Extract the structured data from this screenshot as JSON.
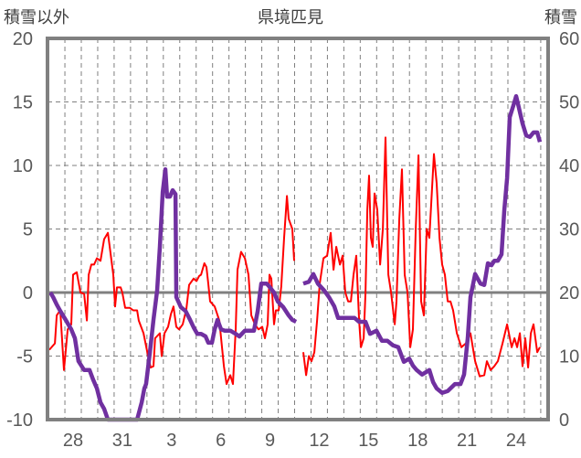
{
  "chart_data": {
    "type": "line",
    "title": "県境匹見",
    "ylabel_left": "積雪以外",
    "ylabel_right": "積雪",
    "ylim_left": [
      -10,
      20
    ],
    "ylim_right": [
      0,
      60
    ],
    "yticks_left": [
      "-10",
      "-5",
      "0",
      "5",
      "10",
      "15",
      "20"
    ],
    "yticks_right": [
      "0",
      "10",
      "20",
      "30",
      "40",
      "50",
      "60"
    ],
    "x_unit": "days since the 28th",
    "xlim": [
      -1.56,
      28.95
    ],
    "xticks": [
      {
        "t": 0,
        "label": "28"
      },
      {
        "t": 3,
        "label": "31"
      },
      {
        "t": 6,
        "label": "3"
      },
      {
        "t": 9,
        "label": "6"
      },
      {
        "t": 12,
        "label": "9"
      },
      {
        "t": 15,
        "label": "12"
      },
      {
        "t": 18,
        "label": "15"
      },
      {
        "t": 21,
        "label": "18"
      },
      {
        "t": 24,
        "label": "21"
      },
      {
        "t": 27,
        "label": "24"
      }
    ],
    "grid": true,
    "series": [
      {
        "name": "積雪以外",
        "axis": "left",
        "color": "#ff0000",
        "points": [
          [
            -1.45,
            -4.5
          ],
          [
            -1.11,
            -4.0
          ],
          [
            -1.0,
            -1.8
          ],
          [
            -0.78,
            -1.4
          ],
          [
            -0.56,
            -6.1
          ],
          [
            -0.33,
            -2.9
          ],
          [
            -0.11,
            -2.5
          ],
          [
            0,
            1.4
          ],
          [
            0.22,
            1.6
          ],
          [
            0.45,
            0
          ],
          [
            0.67,
            -0.1
          ],
          [
            0.84,
            -2.2
          ],
          [
            0.95,
            1.4
          ],
          [
            1.11,
            2.2
          ],
          [
            1.28,
            2.2
          ],
          [
            1.45,
            2.7
          ],
          [
            1.67,
            2.5
          ],
          [
            1.89,
            4.2
          ],
          [
            2.12,
            4.7
          ],
          [
            2.23,
            3.6
          ],
          [
            2.45,
            1.4
          ],
          [
            2.56,
            -1.1
          ],
          [
            2.67,
            0.4
          ],
          [
            2.9,
            0.4
          ],
          [
            3.0,
            0
          ],
          [
            3.17,
            -1.2
          ],
          [
            3.45,
            -1.2
          ],
          [
            3.67,
            -1.4
          ],
          [
            3.9,
            -1.4
          ],
          [
            4.0,
            -2.2
          ],
          [
            4.29,
            -3.2
          ],
          [
            4.57,
            -5.0
          ],
          [
            4.73,
            -5.9
          ],
          [
            4.9,
            -5.8
          ],
          [
            5.0,
            -3.6
          ],
          [
            5.29,
            -3.2
          ],
          [
            5.4,
            -5.0
          ],
          [
            5.57,
            -3.2
          ],
          [
            5.79,
            -2.7
          ],
          [
            5.96,
            -1.7
          ],
          [
            6.12,
            -1.1
          ],
          [
            6.29,
            -2.7
          ],
          [
            6.46,
            -2.9
          ],
          [
            6.68,
            -2.5
          ],
          [
            6.9,
            -1.3
          ],
          [
            7.07,
            0.6
          ],
          [
            7.35,
            1.1
          ],
          [
            7.52,
            0.9
          ],
          [
            7.68,
            1.3
          ],
          [
            7.8,
            1.4
          ],
          [
            8.0,
            2.3
          ],
          [
            8.13,
            2.0
          ],
          [
            8.24,
            0.7
          ],
          [
            8.35,
            -0.7
          ],
          [
            8.63,
            -1.1
          ],
          [
            8.91,
            -2.2
          ],
          [
            9.19,
            -5.8
          ],
          [
            9.35,
            -7.2
          ],
          [
            9.58,
            -6.5
          ],
          [
            9.74,
            -7.2
          ],
          [
            9.91,
            -2.9
          ],
          [
            10.02,
            1.8
          ],
          [
            10.24,
            3.2
          ],
          [
            10.47,
            2.7
          ],
          [
            10.69,
            1.4
          ],
          [
            10.86,
            -1.8
          ],
          [
            11.08,
            -2.5
          ],
          [
            11.3,
            -2.9
          ],
          [
            11.53,
            -2.7
          ],
          [
            11.69,
            -3.6
          ],
          [
            11.86,
            -2.5
          ],
          [
            11.97,
            1.4
          ],
          [
            12.08,
            1.1
          ],
          [
            12.25,
            -2.5
          ],
          [
            12.36,
            -1.4
          ],
          [
            12.53,
            -1.4
          ],
          [
            12.69,
            0.5
          ],
          [
            12.86,
            4.3
          ],
          [
            13.03,
            7.6
          ],
          [
            13.14,
            5.8
          ],
          [
            13.36,
            5.0
          ],
          [
            13.47,
            2.5
          ],
          null,
          [
            14.03,
            -4.7
          ],
          [
            14.2,
            -6.5
          ],
          [
            14.37,
            -5.0
          ],
          [
            14.53,
            -5.4
          ],
          [
            14.7,
            -4.7
          ],
          [
            14.87,
            -2.2
          ],
          [
            15.03,
            0.7
          ],
          [
            15.26,
            2.7
          ],
          [
            15.48,
            2.9
          ],
          [
            15.7,
            4.7
          ],
          [
            15.87,
            1.8
          ],
          [
            16.04,
            3.6
          ],
          [
            16.26,
            2.2
          ],
          [
            16.43,
            2.9
          ],
          [
            16.59,
            0
          ],
          [
            16.76,
            -0.7
          ],
          [
            16.93,
            -0.7
          ],
          [
            17.09,
            1.4
          ],
          [
            17.26,
            2.9
          ],
          [
            17.43,
            -2.2
          ],
          [
            17.54,
            -4.3
          ],
          [
            17.71,
            -3.6
          ],
          [
            17.82,
            0
          ],
          [
            17.93,
            6.5
          ],
          [
            18.04,
            9.2
          ],
          [
            18.15,
            4.3
          ],
          [
            18.26,
            3.6
          ],
          [
            18.37,
            7.8
          ],
          [
            18.54,
            6.5
          ],
          [
            18.71,
            2.2
          ],
          [
            18.88,
            5.0
          ],
          [
            19.04,
            12.2
          ],
          [
            19.21,
            1.4
          ],
          [
            19.38,
            0
          ],
          [
            19.6,
            -2.5
          ],
          [
            19.71,
            -0.7
          ],
          [
            19.88,
            5.8
          ],
          [
            20.04,
            9.7
          ],
          [
            20.21,
            1.4
          ],
          [
            20.38,
            0
          ],
          [
            20.55,
            -4.3
          ],
          [
            20.71,
            -2.9
          ],
          [
            20.88,
            5.0
          ],
          [
            21.05,
            10.8
          ],
          [
            21.21,
            -0.7
          ],
          [
            21.38,
            -1.8
          ],
          [
            21.55,
            5.0
          ],
          [
            21.71,
            4.3
          ],
          [
            21.99,
            10.9
          ],
          [
            22.16,
            8.6
          ],
          [
            22.33,
            4.3
          ],
          [
            22.49,
            2.2
          ],
          [
            22.66,
            1.4
          ],
          [
            22.83,
            -0.7
          ],
          [
            23.0,
            -0.7
          ],
          [
            23.16,
            -1.4
          ],
          [
            23.39,
            -3.2
          ],
          [
            23.66,
            -4.3
          ],
          [
            23.94,
            -4.0
          ],
          [
            24.22,
            -3.2
          ],
          [
            24.5,
            -5.4
          ],
          [
            24.78,
            -6.6
          ],
          [
            25.06,
            -6.5
          ],
          [
            25.22,
            -5.4
          ],
          [
            25.45,
            -6.1
          ],
          [
            25.67,
            -5.8
          ],
          [
            25.89,
            -5.4
          ],
          [
            26.17,
            -4.0
          ],
          [
            26.45,
            -2.5
          ],
          [
            26.73,
            -4.3
          ],
          [
            26.9,
            -3.6
          ],
          [
            27.06,
            -4.3
          ],
          [
            27.23,
            -3.2
          ],
          [
            27.39,
            -5.8
          ],
          [
            27.56,
            -3.6
          ],
          [
            27.73,
            -5.9
          ],
          [
            27.9,
            -3.2
          ],
          [
            28.06,
            -2.5
          ],
          [
            28.29,
            -4.7
          ],
          [
            28.45,
            -4.3
          ]
        ]
      },
      {
        "name": "積雪",
        "axis": "right",
        "color": "#7030a0",
        "points": [
          [
            -1.39,
            20
          ],
          [
            -1.22,
            19.3
          ],
          [
            -1.0,
            18.1
          ],
          [
            -0.78,
            17.1
          ],
          [
            -0.45,
            15.7
          ],
          [
            -0.11,
            14.2
          ],
          [
            0.11,
            12.8
          ],
          [
            0.33,
            9.2
          ],
          [
            0.67,
            7.8
          ],
          [
            1.0,
            7.8
          ],
          [
            1.22,
            6.3
          ],
          [
            1.45,
            4.9
          ],
          [
            1.67,
            2.7
          ],
          [
            1.89,
            1.7
          ],
          [
            2.12,
            0
          ],
          [
            3.9,
            0
          ],
          [
            4.18,
            2.7
          ],
          [
            4.34,
            4.9
          ],
          [
            4.45,
            5.6
          ],
          [
            4.68,
            10.6
          ],
          [
            4.9,
            15.7
          ],
          [
            5.12,
            20.3
          ],
          [
            5.29,
            27.2
          ],
          [
            5.46,
            35.8
          ],
          [
            5.62,
            39.4
          ],
          [
            5.73,
            35.1
          ],
          [
            5.9,
            35.1
          ],
          [
            6.07,
            36.1
          ],
          [
            6.24,
            35.5
          ],
          [
            6.29,
            19.3
          ],
          [
            6.57,
            17.7
          ],
          [
            6.85,
            17.1
          ],
          [
            7.13,
            15.7
          ],
          [
            7.35,
            14.5
          ],
          [
            7.57,
            13.5
          ],
          [
            7.8,
            13.5
          ],
          [
            8.07,
            13.1
          ],
          [
            8.24,
            12.1
          ],
          [
            8.46,
            12.1
          ],
          [
            8.63,
            14.2
          ],
          [
            8.8,
            15.7
          ],
          [
            9.02,
            14.2
          ],
          [
            9.24,
            14.0
          ],
          [
            9.58,
            14.0
          ],
          [
            9.91,
            13.5
          ],
          [
            10.13,
            13.1
          ],
          [
            10.47,
            14.0
          ],
          [
            11.02,
            14.0
          ],
          [
            11.25,
            17.1
          ],
          [
            11.47,
            21.4
          ],
          [
            11.8,
            21.4
          ],
          [
            12.03,
            20.7
          ],
          [
            12.25,
            20
          ],
          [
            12.47,
            18.6
          ],
          [
            12.81,
            17.7
          ],
          [
            13.14,
            16.4
          ],
          [
            13.36,
            15.7
          ],
          [
            13.59,
            15.4
          ],
          null,
          [
            14.03,
            21.4
          ],
          [
            14.37,
            21.7
          ],
          [
            14.64,
            22.9
          ],
          [
            14.92,
            21.4
          ],
          [
            15.31,
            20.3
          ],
          [
            15.59,
            19.3
          ],
          [
            15.92,
            17.8
          ],
          [
            16.15,
            16.0
          ],
          [
            17.15,
            16.0
          ],
          [
            17.43,
            15.4
          ],
          [
            17.82,
            15.4
          ],
          [
            18.1,
            13.5
          ],
          [
            18.49,
            14.0
          ],
          [
            18.82,
            12.4
          ],
          [
            19.15,
            12.4
          ],
          [
            19.49,
            11.7
          ],
          [
            19.82,
            11.4
          ],
          [
            20.16,
            9.1
          ],
          [
            20.49,
            9.6
          ],
          [
            20.71,
            8.5
          ],
          [
            20.94,
            7.8
          ],
          [
            21.27,
            7.1
          ],
          [
            21.71,
            7.8
          ],
          [
            21.94,
            5.9
          ],
          [
            22.16,
            4.9
          ],
          [
            22.49,
            4.2
          ],
          [
            22.83,
            4.5
          ],
          [
            23.27,
            5.6
          ],
          [
            23.61,
            5.6
          ],
          [
            23.83,
            7.1
          ],
          [
            24.05,
            12.8
          ],
          [
            24.22,
            19.3
          ],
          [
            24.5,
            22.9
          ],
          [
            24.83,
            21.4
          ],
          [
            25.06,
            21.2
          ],
          [
            25.28,
            24.6
          ],
          [
            25.5,
            24.3
          ],
          [
            25.67,
            25.0
          ],
          [
            25.89,
            25.0
          ],
          [
            26.11,
            26.0
          ],
          [
            26.28,
            32.9
          ],
          [
            26.45,
            38.0
          ],
          [
            26.61,
            47.6
          ],
          [
            26.84,
            49.5
          ],
          [
            27.0,
            50.9
          ],
          [
            27.17,
            49.1
          ],
          [
            27.39,
            46.6
          ],
          [
            27.62,
            44.7
          ],
          [
            27.84,
            44.5
          ],
          [
            28.06,
            45.2
          ],
          [
            28.29,
            45.2
          ],
          [
            28.45,
            43.7
          ]
        ]
      }
    ]
  }
}
